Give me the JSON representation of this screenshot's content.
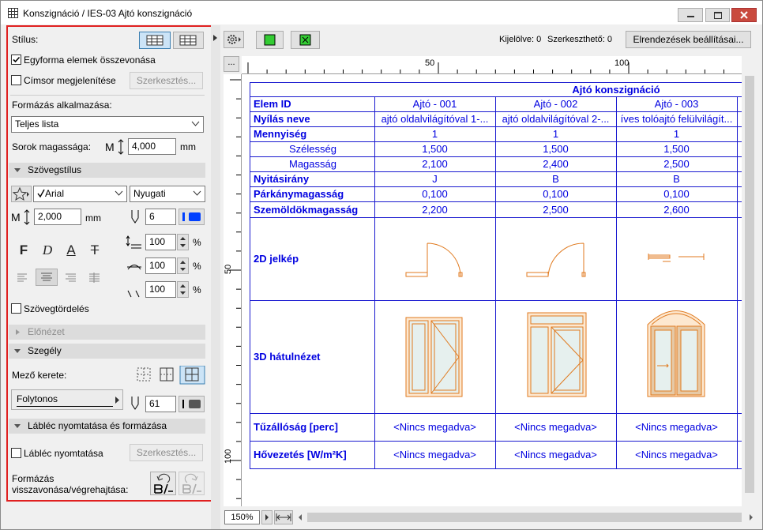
{
  "window": {
    "title": "Konszignáció / IES-03 Ajtó konszignáció"
  },
  "panel": {
    "style_label": "Stílus:",
    "merge_label": "Egyforma elemek összevonása",
    "header_label": "Címsor megjelenítése",
    "header_edit": "Szerkesztés...",
    "apply_label": "Formázás alkalmazása:",
    "apply_value": "Teljes lista",
    "row_height_label": "Sorok magassága:",
    "row_height_value": "4,000",
    "row_height_unit": "mm",
    "text_style_section": "Szövegstílus",
    "font": "Arial",
    "script": "Nyugati",
    "font_size": "2,000",
    "font_size_unit": "mm",
    "pen": "6",
    "style_buttons": [
      "F",
      "D",
      "A",
      "T"
    ],
    "scale_values": [
      "100",
      "100",
      "100"
    ],
    "percent": "%",
    "wrap_label": "Szövegtördelés",
    "preview_section": "Előnézet",
    "border_section": "Szegély",
    "cell_frame_label": "Mező kerete:",
    "line_type": "Folytonos",
    "border_pen": "61",
    "footer_section": "Lábléc nyomtatása és formázása",
    "footer_label": "Lábléc nyomtatása",
    "footer_edit": "Szerkesztés...",
    "undo_label": "Formázás visszavonása/végrehajtása:"
  },
  "toolbar": {
    "selected": "Kijelölve: 0",
    "editable": "Szerkeszthető: 0",
    "layout_button": "Elrendezések beállításai...",
    "more": "..."
  },
  "ruler": {
    "x_labels": [
      "50",
      "100"
    ],
    "y_labels": [
      "50",
      "100"
    ]
  },
  "zoom": "150%",
  "table": {
    "title": "Ajtó konszignáció",
    "rows": [
      [
        "Elem ID",
        "Ajtó - 001",
        "Ajtó - 002",
        "Ajtó - 003"
      ],
      [
        "Nyílás neve",
        "ajtó oldalvilágítóval 1-...",
        "ajtó oldalvilágítóval 2-...",
        "íves tolóajtó felülvilágít..."
      ],
      [
        "Mennyiség",
        "1",
        "1",
        "1"
      ],
      [
        "Szélesség",
        "1,500",
        "1,500",
        "1,500"
      ],
      [
        "Magasság",
        "2,100",
        "2,400",
        "2,500"
      ],
      [
        "Nyitásirány",
        "J",
        "B",
        "B"
      ],
      [
        "Párkánymagasság",
        "0,100",
        "0,100",
        "0,100"
      ],
      [
        "Szemöldökmagasság",
        "2,200",
        "2,500",
        "2,600"
      ],
      [
        "2D jelkép"
      ],
      [
        "3D hátulnézet"
      ],
      [
        "Tűzállóság [perc]",
        "<Nincs megadva>",
        "<Nincs megadva>",
        "<Nincs megadva>"
      ],
      [
        "Hővezetés [W/m²K]",
        "<Nincs megadva>",
        "<Nincs megadva>",
        "<Nincs megadva>"
      ]
    ]
  }
}
